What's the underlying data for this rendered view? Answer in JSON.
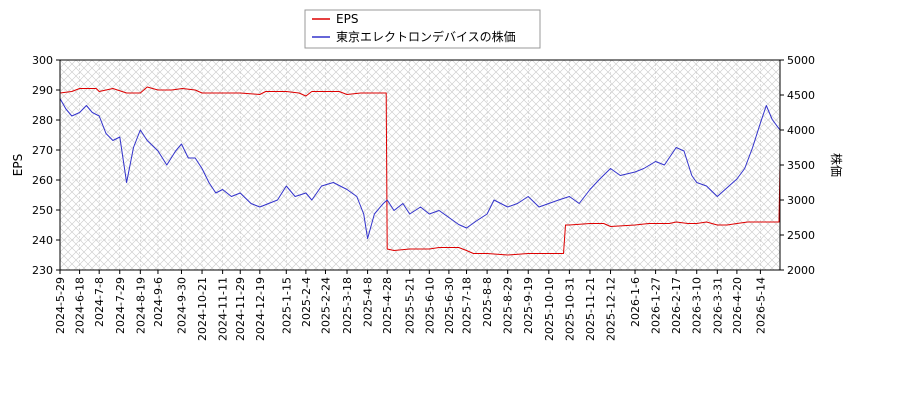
{
  "chart_data": {
    "type": "line",
    "ylabel_left": "EPS",
    "ylabel_right": "株価",
    "ylim_left": [
      230,
      300
    ],
    "ylim_right": [
      2000,
      5000
    ],
    "left_ticks": [
      230,
      240,
      250,
      260,
      270,
      280,
      290,
      300
    ],
    "right_ticks": [
      2000,
      2500,
      3000,
      3500,
      4000,
      4500,
      5000
    ],
    "x_start": "2024-05-29",
    "x_end": "2026-06-03",
    "x_ticks": [
      "2024-5-29",
      "2024-6-18",
      "2024-7-8",
      "2024-7-29",
      "2024-8-19",
      "2024-9-6",
      "2024-9-30",
      "2024-10-21",
      "2024-11-11",
      "2024-11-29",
      "2024-12-19",
      "2025-1-15",
      "2025-2-4",
      "2025-2-24",
      "2025-3-18",
      "2025-4-8",
      "2025-4-28",
      "2025-5-21",
      "2025-6-10",
      "2025-6-30",
      "2025-7-18",
      "2025-8-8",
      "2025-8-29",
      "2025-9-19",
      "2025-10-10",
      "2025-10-31",
      "2025-11-21",
      "2025-12-12",
      "2026-1-6",
      "2026-1-27",
      "2026-2-17",
      "2026-3-10",
      "2026-3-31",
      "2026-4-20",
      "2026-5-14"
    ],
    "legend_position": "top-center",
    "grid": true,
    "series": [
      {
        "name": "EPS",
        "axis": "left",
        "color": "#dd0000",
        "points": [
          [
            "2024-05-29",
            289
          ],
          [
            "2024-06-10",
            289.5
          ],
          [
            "2024-06-18",
            290.5
          ],
          [
            "2024-07-05",
            290.5
          ],
          [
            "2024-07-08",
            289.5
          ],
          [
            "2024-07-22",
            290.5
          ],
          [
            "2024-08-05",
            289
          ],
          [
            "2024-08-19",
            289
          ],
          [
            "2024-08-26",
            291
          ],
          [
            "2024-09-06",
            290
          ],
          [
            "2024-09-20",
            290
          ],
          [
            "2024-10-01",
            290.5
          ],
          [
            "2024-10-14",
            290
          ],
          [
            "2024-10-21",
            289
          ],
          [
            "2024-11-11",
            289
          ],
          [
            "2024-11-29",
            289
          ],
          [
            "2024-12-19",
            288.5
          ],
          [
            "2024-12-25",
            289.5
          ],
          [
            "2025-01-15",
            289.5
          ],
          [
            "2025-01-28",
            289
          ],
          [
            "2025-02-04",
            288
          ],
          [
            "2025-02-10",
            289.5
          ],
          [
            "2025-03-10",
            289.5
          ],
          [
            "2025-03-18",
            288.5
          ],
          [
            "2025-04-01",
            289
          ],
          [
            "2025-04-27",
            289
          ],
          [
            "2025-04-28",
            237
          ],
          [
            "2025-05-05",
            236.5
          ],
          [
            "2025-05-21",
            237
          ],
          [
            "2025-06-10",
            237
          ],
          [
            "2025-06-20",
            237.5
          ],
          [
            "2025-07-10",
            237.5
          ],
          [
            "2025-07-18",
            236.5
          ],
          [
            "2025-07-25",
            235.5
          ],
          [
            "2025-08-08",
            235.5
          ],
          [
            "2025-08-29",
            235
          ],
          [
            "2025-09-19",
            235.5
          ],
          [
            "2025-10-10",
            235.5
          ],
          [
            "2025-10-25",
            235.5
          ],
          [
            "2025-10-27",
            245
          ],
          [
            "2025-10-31",
            245
          ],
          [
            "2025-11-21",
            245.5
          ],
          [
            "2025-12-05",
            245.5
          ],
          [
            "2025-12-12",
            244.5
          ],
          [
            "2026-01-06",
            245
          ],
          [
            "2026-01-20",
            245.5
          ],
          [
            "2026-01-27",
            245.5
          ],
          [
            "2026-02-10",
            245.5
          ],
          [
            "2026-02-17",
            246
          ],
          [
            "2026-03-01",
            245.5
          ],
          [
            "2026-03-10",
            245.5
          ],
          [
            "2026-03-20",
            246
          ],
          [
            "2026-03-31",
            245
          ],
          [
            "2026-04-10",
            245
          ],
          [
            "2026-04-20",
            245.5
          ],
          [
            "2026-05-01",
            246
          ],
          [
            "2026-05-14",
            246
          ],
          [
            "2026-06-02",
            246
          ],
          [
            "2026-06-03",
            265
          ]
        ]
      },
      {
        "name": "東京エレクトロンデバイスの株価",
        "axis": "right",
        "color": "#3333cc",
        "points": [
          [
            "2024-05-29",
            4450
          ],
          [
            "2024-06-04",
            4300
          ],
          [
            "2024-06-10",
            4200
          ],
          [
            "2024-06-18",
            4250
          ],
          [
            "2024-06-25",
            4350
          ],
          [
            "2024-07-01",
            4250
          ],
          [
            "2024-07-08",
            4200
          ],
          [
            "2024-07-15",
            3950
          ],
          [
            "2024-07-22",
            3850
          ],
          [
            "2024-07-29",
            3900
          ],
          [
            "2024-08-05",
            3250
          ],
          [
            "2024-08-12",
            3750
          ],
          [
            "2024-08-19",
            4000
          ],
          [
            "2024-08-26",
            3850
          ],
          [
            "2024-09-06",
            3700
          ],
          [
            "2024-09-15",
            3500
          ],
          [
            "2024-09-24",
            3700
          ],
          [
            "2024-09-30",
            3800
          ],
          [
            "2024-10-07",
            3600
          ],
          [
            "2024-10-14",
            3600
          ],
          [
            "2024-10-21",
            3450
          ],
          [
            "2024-10-28",
            3250
          ],
          [
            "2024-11-04",
            3100
          ],
          [
            "2024-11-11",
            3150
          ],
          [
            "2024-11-20",
            3050
          ],
          [
            "2024-11-29",
            3100
          ],
          [
            "2024-12-10",
            2950
          ],
          [
            "2024-12-19",
            2900
          ],
          [
            "2025-01-06",
            3000
          ],
          [
            "2025-01-15",
            3200
          ],
          [
            "2025-01-24",
            3050
          ],
          [
            "2025-02-04",
            3100
          ],
          [
            "2025-02-10",
            3000
          ],
          [
            "2025-02-20",
            3200
          ],
          [
            "2025-03-04",
            3250
          ],
          [
            "2025-03-18",
            3150
          ],
          [
            "2025-03-28",
            3050
          ],
          [
            "2025-04-04",
            2800
          ],
          [
            "2025-04-08",
            2450
          ],
          [
            "2025-04-15",
            2800
          ],
          [
            "2025-04-24",
            2950
          ],
          [
            "2025-04-28",
            3000
          ],
          [
            "2025-05-05",
            2850
          ],
          [
            "2025-05-14",
            2950
          ],
          [
            "2025-05-21",
            2800
          ],
          [
            "2025-06-01",
            2900
          ],
          [
            "2025-06-10",
            2800
          ],
          [
            "2025-06-20",
            2850
          ],
          [
            "2025-06-30",
            2750
          ],
          [
            "2025-07-10",
            2650
          ],
          [
            "2025-07-18",
            2600
          ],
          [
            "2025-07-28",
            2700
          ],
          [
            "2025-08-08",
            2800
          ],
          [
            "2025-08-15",
            3000
          ],
          [
            "2025-08-29",
            2900
          ],
          [
            "2025-09-08",
            2950
          ],
          [
            "2025-09-19",
            3050
          ],
          [
            "2025-09-30",
            2900
          ],
          [
            "2025-10-10",
            2950
          ],
          [
            "2025-10-20",
            3000
          ],
          [
            "2025-10-31",
            3050
          ],
          [
            "2025-11-10",
            2950
          ],
          [
            "2025-11-21",
            3150
          ],
          [
            "2025-12-01",
            3300
          ],
          [
            "2025-12-12",
            3450
          ],
          [
            "2025-12-22",
            3350
          ],
          [
            "2026-01-06",
            3400
          ],
          [
            "2026-01-15",
            3450
          ],
          [
            "2026-01-27",
            3550
          ],
          [
            "2026-02-05",
            3500
          ],
          [
            "2026-02-17",
            3750
          ],
          [
            "2026-02-25",
            3700
          ],
          [
            "2026-03-05",
            3350
          ],
          [
            "2026-03-10",
            3250
          ],
          [
            "2026-03-20",
            3200
          ],
          [
            "2026-03-31",
            3050
          ],
          [
            "2026-04-08",
            3150
          ],
          [
            "2026-04-20",
            3300
          ],
          [
            "2026-04-28",
            3450
          ],
          [
            "2026-05-06",
            3750
          ],
          [
            "2026-05-14",
            4100
          ],
          [
            "2026-05-20",
            4350
          ],
          [
            "2026-05-26",
            4150
          ],
          [
            "2026-06-03",
            4000
          ]
        ]
      }
    ]
  }
}
